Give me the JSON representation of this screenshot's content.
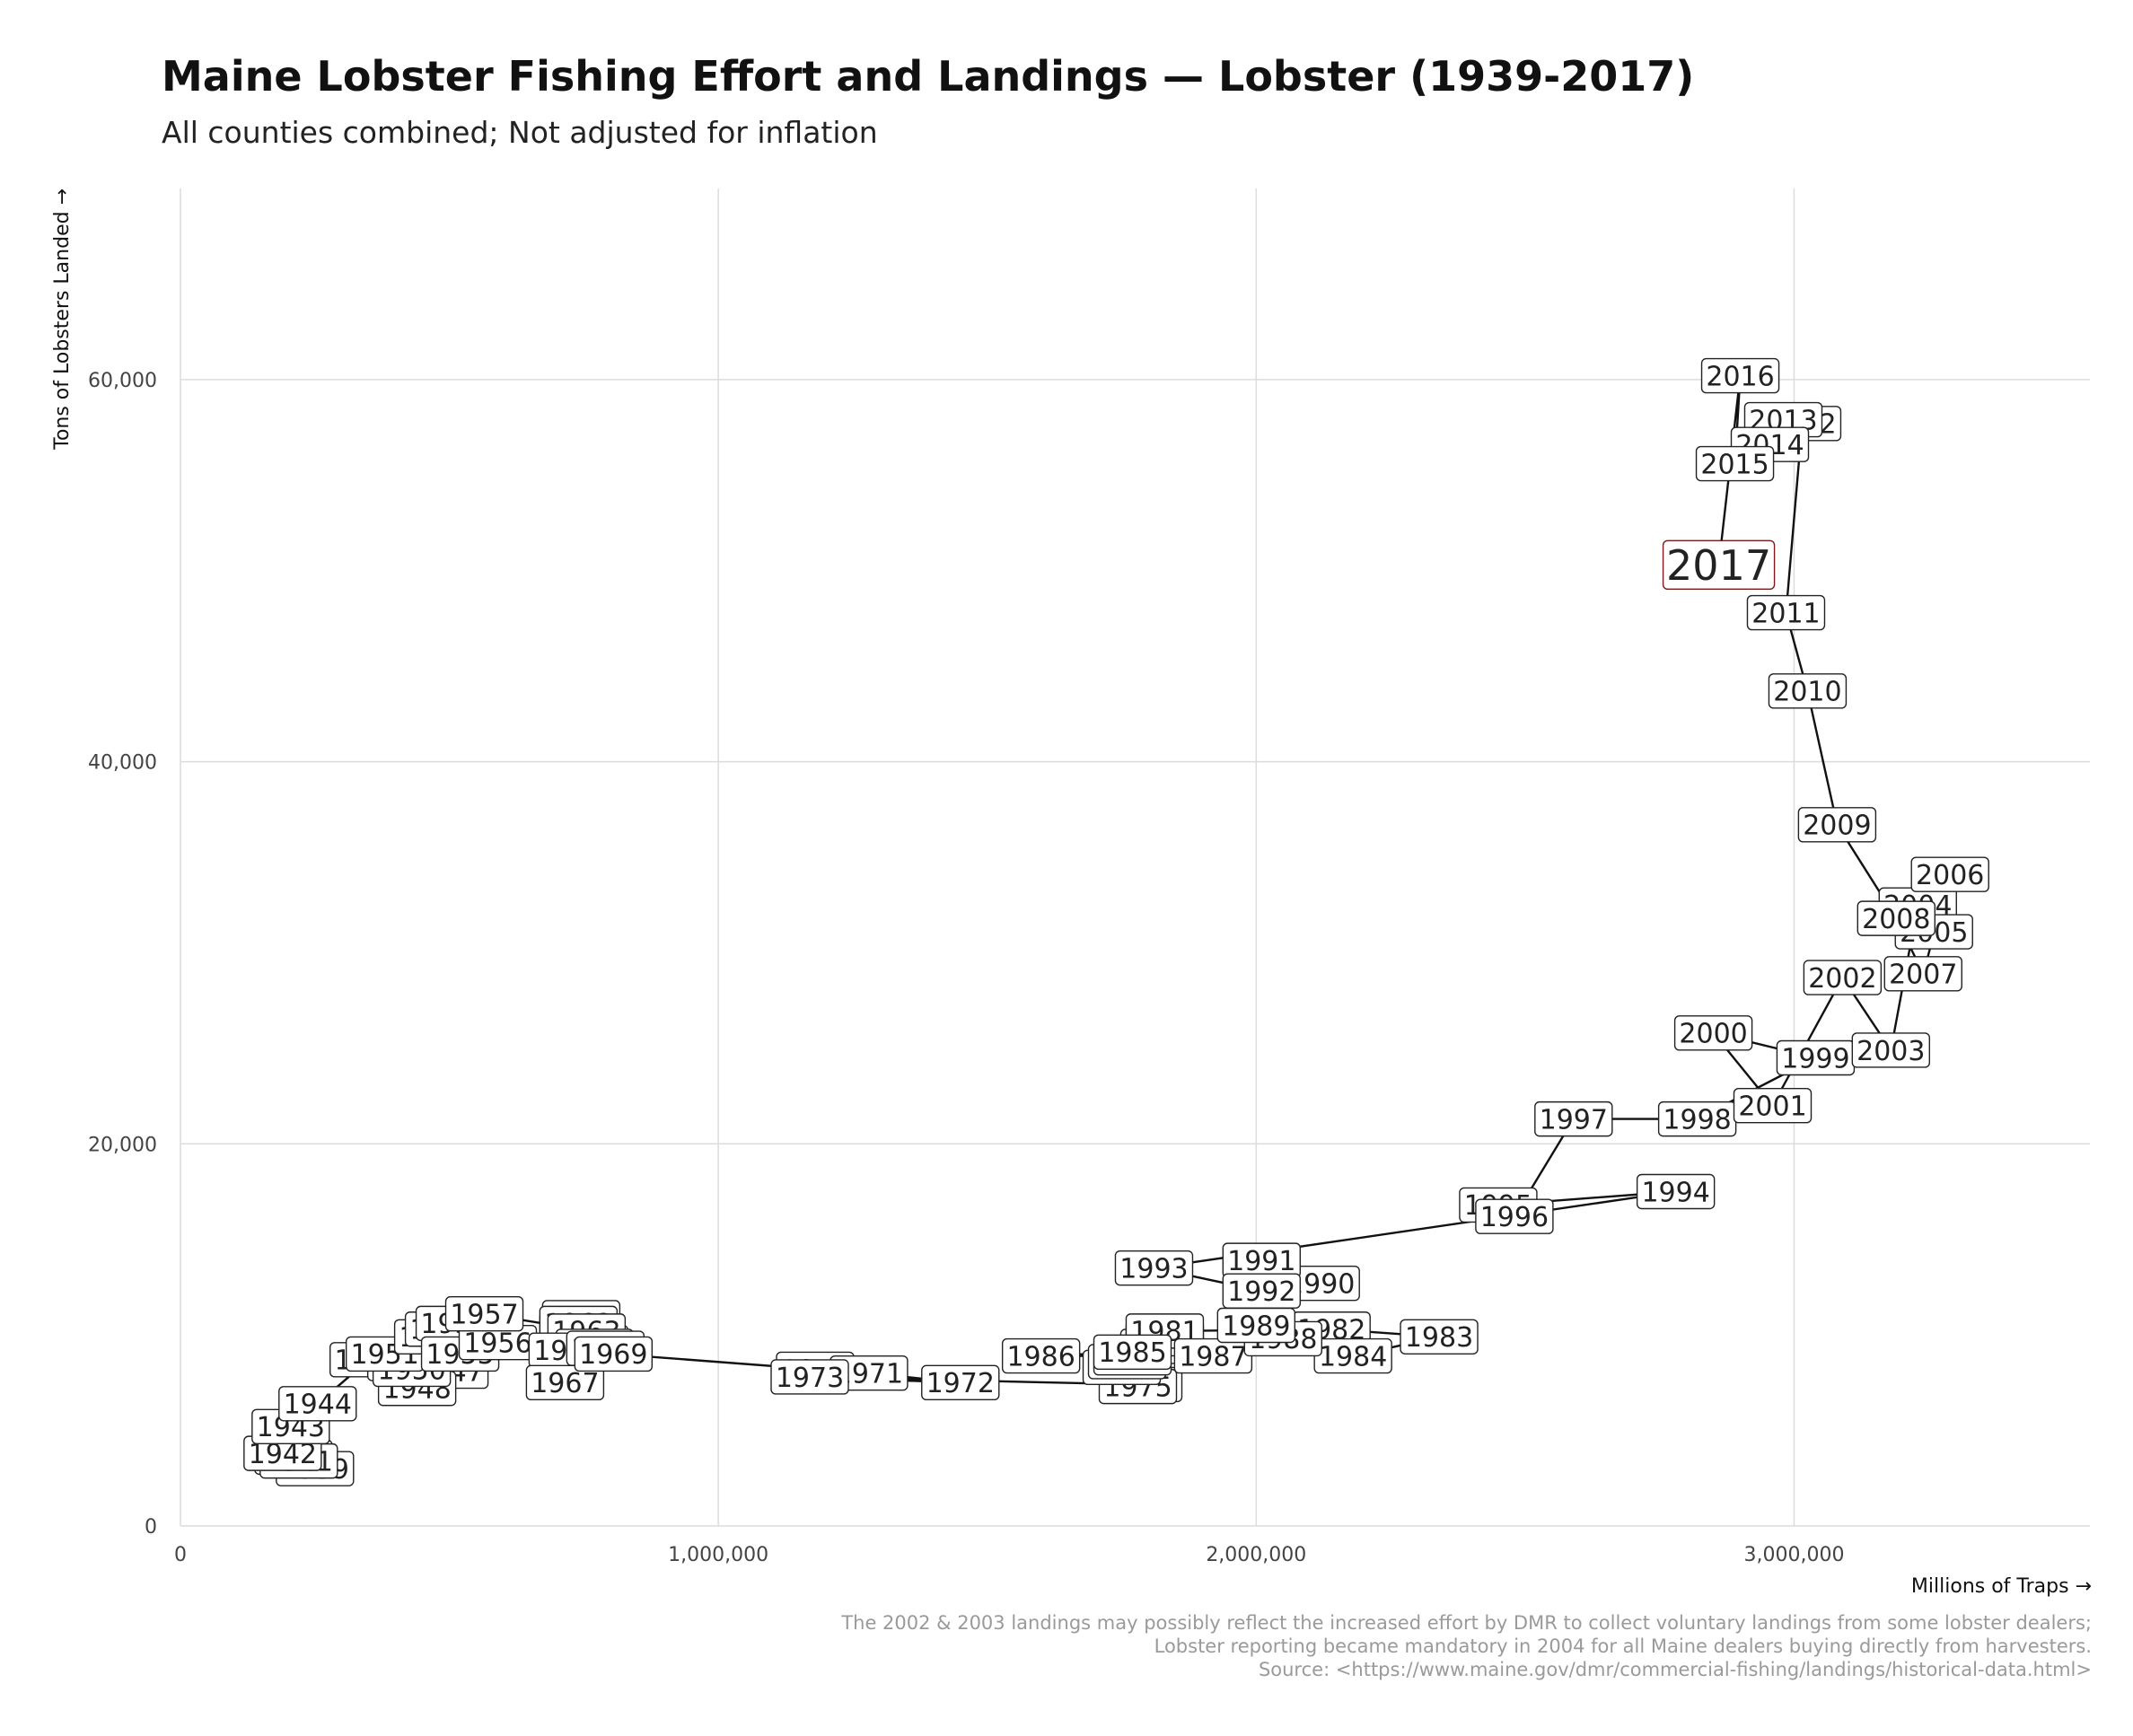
{
  "title": "Maine Lobster Fishing Effort and Landings — Lobster (1939-2017)",
  "subtitle": "All counties combined; Not adjusted for inflation",
  "caption": [
    "The 2002 & 2003 landings may possibly reflect the increased effort by DMR to collect voluntary landings from some lobster dealers;",
    "Lobster reporting became mandatory in 2004 for all Maine dealers buying directly from harvesters.",
    "Source: <https://www.maine.gov/dmr/commercial-fishing/landings/historical-data.html>"
  ],
  "colors": {
    "highlight": "#7b1a1a",
    "line": "#111111",
    "grid": "#dcdcdc"
  },
  "chart_data": {
    "type": "line",
    "xlabel": "Millions of Traps →",
    "ylabel": "Tons of Lobsters Landed →",
    "xlim": [
      0,
      3550000
    ],
    "ylim": [
      0,
      70000
    ],
    "x_ticks": [
      {
        "value": 0,
        "label": "0"
      },
      {
        "value": 1000000,
        "label": "1,000,000"
      },
      {
        "value": 2000000,
        "label": "2,000,000"
      },
      {
        "value": 3000000,
        "label": "3,000,000"
      }
    ],
    "y_ticks": [
      {
        "value": 0,
        "label": "0"
      },
      {
        "value": 20000,
        "label": "20,000"
      },
      {
        "value": 40000,
        "label": "40,000"
      },
      {
        "value": 60000,
        "label": "60,000"
      }
    ],
    "grid": true,
    "highlight_year": "2017",
    "points": [
      {
        "year": "1939",
        "x": 250000,
        "y": 3000
      },
      {
        "year": "1940",
        "x": 210000,
        "y": 3600
      },
      {
        "year": "1941",
        "x": 220000,
        "y": 3400
      },
      {
        "year": "1942",
        "x": 190000,
        "y": 3800
      },
      {
        "year": "1943",
        "x": 205000,
        "y": 5200
      },
      {
        "year": "1944",
        "x": 255000,
        "y": 6400
      },
      {
        "year": "1945",
        "x": 350000,
        "y": 8700
      },
      {
        "year": "1946",
        "x": 460000,
        "y": 8300
      },
      {
        "year": "1947",
        "x": 500000,
        "y": 8100
      },
      {
        "year": "1948",
        "x": 440000,
        "y": 7200
      },
      {
        "year": "1949",
        "x": 420000,
        "y": 8500
      },
      {
        "year": "1950",
        "x": 430000,
        "y": 8200
      },
      {
        "year": "1951",
        "x": 380000,
        "y": 9000
      },
      {
        "year": "1952",
        "x": 470000,
        "y": 9900
      },
      {
        "year": "1953",
        "x": 490000,
        "y": 10300
      },
      {
        "year": "1954",
        "x": 510000,
        "y": 10600
      },
      {
        "year": "1955",
        "x": 520000,
        "y": 9000
      },
      {
        "year": "1956",
        "x": 590000,
        "y": 9600
      },
      {
        "year": "1957",
        "x": 565000,
        "y": 11100
      },
      {
        "year": "1958",
        "x": 740000,
        "y": 10300
      },
      {
        "year": "1959",
        "x": 750000,
        "y": 10000
      },
      {
        "year": "1960",
        "x": 760000,
        "y": 9600
      },
      {
        "year": "1961",
        "x": 745000,
        "y": 10900
      },
      {
        "year": "1962",
        "x": 740000,
        "y": 10600
      },
      {
        "year": "1963",
        "x": 755000,
        "y": 10200
      },
      {
        "year": "1964",
        "x": 770000,
        "y": 9400
      },
      {
        "year": "1965",
        "x": 780000,
        "y": 9100
      },
      {
        "year": "1966",
        "x": 720000,
        "y": 9200
      },
      {
        "year": "1967",
        "x": 715000,
        "y": 7500
      },
      {
        "year": "1968",
        "x": 790000,
        "y": 9300
      },
      {
        "year": "1969",
        "x": 805000,
        "y": 9000
      },
      {
        "year": "1970",
        "x": 1180000,
        "y": 8200
      },
      {
        "year": "1971",
        "x": 1280000,
        "y": 8000
      },
      {
        "year": "1972",
        "x": 1450000,
        "y": 7500
      },
      {
        "year": "1973",
        "x": 1170000,
        "y": 7800
      },
      {
        "year": "1974",
        "x": 1790000,
        "y": 7400
      },
      {
        "year": "1975",
        "x": 1780000,
        "y": 7300
      },
      {
        "year": "1976",
        "x": 1750000,
        "y": 8300
      },
      {
        "year": "1977",
        "x": 1760000,
        "y": 8600
      },
      {
        "year": "1978",
        "x": 1770000,
        "y": 8800
      },
      {
        "year": "1979",
        "x": 1820000,
        "y": 9400
      },
      {
        "year": "1980",
        "x": 1830000,
        "y": 9800
      },
      {
        "year": "1981",
        "x": 1830000,
        "y": 10200
      },
      {
        "year": "1982",
        "x": 2140000,
        "y": 10300
      },
      {
        "year": "1983",
        "x": 2340000,
        "y": 9900
      },
      {
        "year": "1984",
        "x": 2180000,
        "y": 8900
      },
      {
        "year": "1985",
        "x": 1770000,
        "y": 9100
      },
      {
        "year": "1986",
        "x": 1600000,
        "y": 8900
      },
      {
        "year": "1987",
        "x": 1920000,
        "y": 8900
      },
      {
        "year": "1988",
        "x": 2050000,
        "y": 9800
      },
      {
        "year": "1989",
        "x": 2000000,
        "y": 10500
      },
      {
        "year": "1990",
        "x": 2120000,
        "y": 12700
      },
      {
        "year": "1991",
        "x": 2010000,
        "y": 13900
      },
      {
        "year": "1992",
        "x": 2010000,
        "y": 12300
      },
      {
        "year": "1993",
        "x": 1810000,
        "y": 13500
      },
      {
        "year": "1994",
        "x": 2780000,
        "y": 17500
      },
      {
        "year": "1995",
        "x": 2450000,
        "y": 16800
      },
      {
        "year": "1996",
        "x": 2480000,
        "y": 16200
      },
      {
        "year": "1997",
        "x": 2590000,
        "y": 21300
      },
      {
        "year": "1998",
        "x": 2820000,
        "y": 21300
      },
      {
        "year": "1999",
        "x": 3040000,
        "y": 24500
      },
      {
        "year": "2000",
        "x": 2850000,
        "y": 25800
      },
      {
        "year": "2001",
        "x": 2960000,
        "y": 22000
      },
      {
        "year": "2002",
        "x": 3090000,
        "y": 28700
      },
      {
        "year": "2003",
        "x": 3180000,
        "y": 24900
      },
      {
        "year": "2004",
        "x": 3230000,
        "y": 32500
      },
      {
        "year": "2005",
        "x": 3260000,
        "y": 31100
      },
      {
        "year": "2006",
        "x": 3290000,
        "y": 34100
      },
      {
        "year": "2007",
        "x": 3240000,
        "y": 28900
      },
      {
        "year": "2008",
        "x": 3190000,
        "y": 31800
      },
      {
        "year": "2009",
        "x": 3080000,
        "y": 36700
      },
      {
        "year": "2010",
        "x": 3025000,
        "y": 43700
      },
      {
        "year": "2011",
        "x": 2985000,
        "y": 47800
      },
      {
        "year": "2012",
        "x": 3015000,
        "y": 57700
      },
      {
        "year": "2013",
        "x": 2980000,
        "y": 57900
      },
      {
        "year": "2014",
        "x": 2955000,
        "y": 56600
      },
      {
        "year": "2015",
        "x": 2890000,
        "y": 55600
      },
      {
        "year": "2016",
        "x": 2900000,
        "y": 60200
      },
      {
        "year": "2017",
        "x": 2860000,
        "y": 50300
      }
    ]
  }
}
